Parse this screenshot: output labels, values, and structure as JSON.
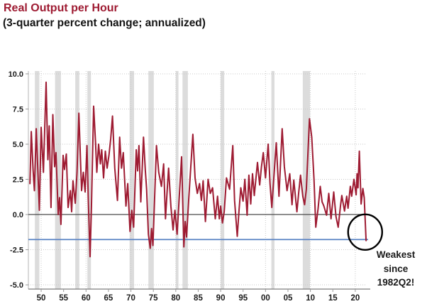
{
  "chart_data": {
    "type": "line",
    "title": "Real Output per Hour",
    "subtitle": "(3-quarter percent change; annualized)",
    "title_color": "#9e1b32",
    "subtitle_color": "#141414",
    "series_color": "#9e1b32",
    "recession_band_color": "#dcdcdc",
    "grid_color": "#c8c8c8",
    "axis_color": "#9a9a9a",
    "tick_label_color": "#1a1a1a",
    "zero_line": {
      "value": 0,
      "color": "#4a4a4a"
    },
    "reference_line": {
      "value": -1.78,
      "color": "#5b84c4"
    },
    "xlim": [
      1947.15,
      2022.55
    ],
    "ylim": [
      -5.3,
      10.2
    ],
    "legend": "none",
    "y_ticks": [
      {
        "label": "10.0",
        "value": 10
      },
      {
        "label": "7.5",
        "value": 7.5
      },
      {
        "label": "5.0",
        "value": 5
      },
      {
        "label": "2.5",
        "value": 2.5
      },
      {
        "label": "0.0",
        "value": 0
      },
      {
        "label": "-2.5",
        "value": -2.5
      },
      {
        "label": "-5.0",
        "value": -5
      }
    ],
    "x_ticks": [
      {
        "label": "50",
        "year": 1950
      },
      {
        "label": "55",
        "year": 1955
      },
      {
        "label": "60",
        "year": 1960
      },
      {
        "label": "65",
        "year": 1965
      },
      {
        "label": "70",
        "year": 1970
      },
      {
        "label": "75",
        "year": 1975
      },
      {
        "label": "80",
        "year": 1980
      },
      {
        "label": "85",
        "year": 1985
      },
      {
        "label": "90",
        "year": 1990
      },
      {
        "label": "95",
        "year": 1995
      },
      {
        "label": "00",
        "year": 2000
      },
      {
        "label": "05",
        "year": 2005
      },
      {
        "label": "10",
        "year": 2010
      },
      {
        "label": "15",
        "year": 2015
      },
      {
        "label": "20",
        "year": 2020
      }
    ],
    "vertical_gridline_years": [
      1950,
      1960,
      1970,
      1980,
      1990,
      2000,
      2010,
      2020
    ],
    "recessions": [
      [
        1948.6,
        1949.6
      ],
      [
        1953.1,
        1954.4
      ],
      [
        1957.6,
        1958.5
      ],
      [
        1960.3,
        1961.1
      ],
      [
        1969.7,
        1970.7
      ],
      [
        1973.9,
        1975.1
      ],
      [
        1980.0,
        1980.6
      ],
      [
        1981.5,
        1982.7
      ],
      [
        1990.0,
        1990.8
      ],
      [
        2001.3,
        2002.0
      ],
      [
        2008.3,
        2009.9
      ]
    ],
    "annotation": {
      "line1": "Weakest",
      "line2": "since",
      "line3": "1982Q2!",
      "circle": {
        "year": 2022.2,
        "value": -1.25
      }
    },
    "series": [
      {
        "name": "Real Output per Hour",
        "points": [
          [
            1947.5,
            2.2
          ],
          [
            1947.8,
            5.9
          ],
          [
            1948.2,
            3.2
          ],
          [
            1948.5,
            1.7
          ],
          [
            1948.9,
            6.1
          ],
          [
            1949.3,
            2.8
          ],
          [
            1949.6,
            0.3
          ],
          [
            1950.0,
            6.2
          ],
          [
            1950.5,
            3.0
          ],
          [
            1951.1,
            9.4
          ],
          [
            1951.5,
            3.9
          ],
          [
            1951.8,
            6.3
          ],
          [
            1952.2,
            0.5
          ],
          [
            1952.6,
            7.1
          ],
          [
            1953.0,
            3.4
          ],
          [
            1953.3,
            4.4
          ],
          [
            1953.8,
            0.0
          ],
          [
            1954.1,
            1.2
          ],
          [
            1954.4,
            -0.7
          ],
          [
            1954.9,
            4.2
          ],
          [
            1955.2,
            3.2
          ],
          [
            1955.6,
            4.3
          ],
          [
            1956.0,
            0.5
          ],
          [
            1956.5,
            1.7
          ],
          [
            1956.8,
            0.2
          ],
          [
            1957.1,
            2.4
          ],
          [
            1957.6,
            0.8
          ],
          [
            1958.0,
            3.0
          ],
          [
            1958.4,
            7.2
          ],
          [
            1959.0,
            1.7
          ],
          [
            1959.4,
            3.0
          ],
          [
            1959.8,
            1.6
          ],
          [
            1960.2,
            4.9
          ],
          [
            1960.5,
            1.0
          ],
          [
            1960.9,
            -3.0
          ],
          [
            1961.2,
            0.5
          ],
          [
            1961.7,
            7.7
          ],
          [
            1962.1,
            5.2
          ],
          [
            1962.4,
            3.0
          ],
          [
            1962.8,
            5.0
          ],
          [
            1963.2,
            3.6
          ],
          [
            1963.5,
            4.6
          ],
          [
            1963.9,
            2.6
          ],
          [
            1964.3,
            4.5
          ],
          [
            1964.7,
            3.3
          ],
          [
            1965.1,
            4.2
          ],
          [
            1965.5,
            5.4
          ],
          [
            1965.9,
            7.0
          ],
          [
            1966.4,
            3.3
          ],
          [
            1967.0,
            1.0
          ],
          [
            1967.5,
            5.5
          ],
          [
            1967.9,
            3.3
          ],
          [
            1968.3,
            4.4
          ],
          [
            1968.9,
            0.6
          ],
          [
            1969.3,
            2.2
          ],
          [
            1969.8,
            -1.2
          ],
          [
            1970.2,
            0.3
          ],
          [
            1970.6,
            -0.9
          ],
          [
            1971.2,
            4.6
          ],
          [
            1971.5,
            3.1
          ],
          [
            1971.8,
            4.9
          ],
          [
            1972.2,
            0.9
          ],
          [
            1972.8,
            5.5
          ],
          [
            1973.2,
            3.2
          ],
          [
            1973.5,
            1.8
          ],
          [
            1973.9,
            -1.4
          ],
          [
            1974.3,
            -2.4
          ],
          [
            1974.6,
            -1.0
          ],
          [
            1974.9,
            -2.2
          ],
          [
            1975.7,
            4.9
          ],
          [
            1976.2,
            3.0
          ],
          [
            1976.8,
            2.0
          ],
          [
            1977.3,
            3.6
          ],
          [
            1977.7,
            -0.3
          ],
          [
            1978.1,
            1.8
          ],
          [
            1978.4,
            3.3
          ],
          [
            1978.9,
            0.6
          ],
          [
            1979.4,
            -1.1
          ],
          [
            1979.8,
            0.3
          ],
          [
            1980.3,
            -1.4
          ],
          [
            1980.8,
            1.4
          ],
          [
            1981.3,
            4.1
          ],
          [
            1981.8,
            -2.3
          ],
          [
            1982.1,
            -0.5
          ],
          [
            1982.4,
            -1.6
          ],
          [
            1982.9,
            1.2
          ],
          [
            1983.8,
            5.7
          ],
          [
            1984.3,
            2.6
          ],
          [
            1984.8,
            1.5
          ],
          [
            1985.3,
            2.2
          ],
          [
            1985.7,
            1.0
          ],
          [
            1986.1,
            2.4
          ],
          [
            1986.6,
            -0.5
          ],
          [
            1987.2,
            2.5
          ],
          [
            1987.7,
            1.5
          ],
          [
            1988.2,
            1.9
          ],
          [
            1988.8,
            -0.3
          ],
          [
            1989.3,
            1.3
          ],
          [
            1989.7,
            -0.3
          ],
          [
            1990.0,
            0.6
          ],
          [
            1990.4,
            -0.6
          ],
          [
            1990.8,
            0.2
          ],
          [
            1991.3,
            2.6
          ],
          [
            1992.0,
            1.8
          ],
          [
            1992.7,
            4.9
          ],
          [
            1993.1,
            1.0
          ],
          [
            1993.7,
            -1.55
          ],
          [
            1994.1,
            0.3
          ],
          [
            1994.5,
            1.9
          ],
          [
            1995.0,
            0.95
          ],
          [
            1995.4,
            2.5
          ],
          [
            1995.9,
            -0.05
          ],
          [
            1996.3,
            2.8
          ],
          [
            1996.7,
            0.75
          ],
          [
            1997.1,
            2.9
          ],
          [
            1997.5,
            1.35
          ],
          [
            1998.2,
            3.7
          ],
          [
            1998.7,
            2.1
          ],
          [
            1999.1,
            3.4
          ],
          [
            1999.5,
            4.4
          ],
          [
            2000.0,
            2.6
          ],
          [
            2000.6,
            5.0
          ],
          [
            2001.0,
            2.2
          ],
          [
            2001.4,
            0.5
          ],
          [
            2002.0,
            3.3
          ],
          [
            2002.4,
            5.1
          ],
          [
            2003.0,
            1.3
          ],
          [
            2003.7,
            6.1
          ],
          [
            2004.2,
            3.4
          ],
          [
            2004.8,
            1.7
          ],
          [
            2005.4,
            2.9
          ],
          [
            2005.9,
            0.7
          ],
          [
            2006.3,
            2.45
          ],
          [
            2007.0,
            0.2
          ],
          [
            2007.4,
            1.6
          ],
          [
            2007.8,
            2.8
          ],
          [
            2008.3,
            1.3
          ],
          [
            2008.7,
            0.7
          ],
          [
            2009.1,
            1.8
          ],
          [
            2009.8,
            6.8
          ],
          [
            2010.3,
            5.5
          ],
          [
            2010.8,
            2.5
          ],
          [
            2011.2,
            -0.9
          ],
          [
            2011.7,
            0.4
          ],
          [
            2012.2,
            2.0
          ],
          [
            2012.6,
            0.9
          ],
          [
            2013.0,
            0.6
          ],
          [
            2013.6,
            -0.05
          ],
          [
            2014.1,
            1.5
          ],
          [
            2014.6,
            -0.3
          ],
          [
            2015.2,
            1.6
          ],
          [
            2015.7,
            -0.15
          ],
          [
            2016.2,
            -0.9
          ],
          [
            2016.7,
            0.6
          ],
          [
            2017.0,
            1.35
          ],
          [
            2017.6,
            0.25
          ],
          [
            2018.1,
            1.3
          ],
          [
            2018.4,
            0.45
          ],
          [
            2018.9,
            2.0
          ],
          [
            2019.2,
            1.3
          ],
          [
            2019.7,
            2.5
          ],
          [
            2020.2,
            1.4
          ],
          [
            2020.4,
            2.9
          ],
          [
            2020.6,
            1.9
          ],
          [
            2020.9,
            4.5
          ],
          [
            2021.3,
            0.75
          ],
          [
            2021.7,
            1.85
          ],
          [
            2022.0,
            1.2
          ],
          [
            2022.4,
            -1.85
          ]
        ]
      }
    ]
  }
}
